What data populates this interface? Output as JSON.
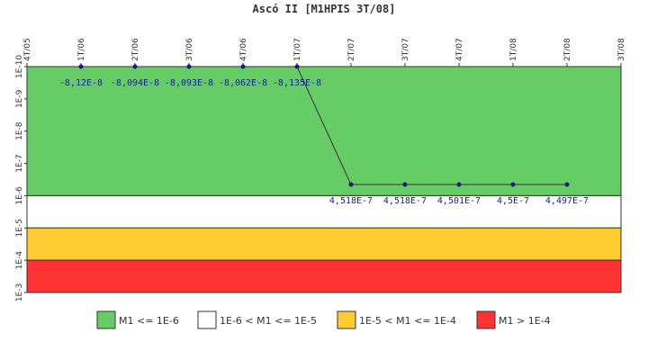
{
  "chart_data": {
    "type": "line",
    "title": "Ascó II [M1HPIS 3T/08]",
    "xlabel": "",
    "ylabel": "",
    "y_scale": "log",
    "y_inverted": true,
    "x_ticks": [
      "4T/05",
      "1T/06",
      "2T/06",
      "3T/06",
      "4T/06",
      "1T/07",
      "2T/07",
      "3T/07",
      "4T/07",
      "1T/08",
      "2T/08",
      "3T/08"
    ],
    "y_ticks": [
      "1E-10",
      "1E-9",
      "1E-8",
      "1E-7",
      "1E-6",
      "1E-5",
      "1E-4",
      "1E-3"
    ],
    "ylim": [
      1e-10,
      0.001
    ],
    "bands": [
      {
        "label": "M1 <= 1E-6",
        "from": 1e-10,
        "to": 1e-06,
        "color": "#66cc66"
      },
      {
        "label": "1E-6 < M1 <= 1E-5",
        "from": 1e-06,
        "to": 1e-05,
        "color": "#ffffff"
      },
      {
        "label": "1E-5 < M1 <= 1E-4",
        "from": 1e-05,
        "to": 0.0001,
        "color": "#ffcc33"
      },
      {
        "label": "M1 > 1E-4",
        "from": 0.0001,
        "to": 0.001,
        "color": "#ff3333"
      }
    ],
    "series": [
      {
        "x": [
          "1T/06",
          "2T/06",
          "3T/06",
          "4T/06",
          "1T/07",
          "2T/07",
          "3T/07",
          "4T/07",
          "1T/08",
          "2T/08"
        ],
        "values": [
          -8.12e-08,
          -8.094e-08,
          -8.093e-08,
          -8.062e-08,
          -8.135e-08,
          4.518e-07,
          4.518e-07,
          4.501e-07,
          4.5e-07,
          4.497e-07
        ],
        "labels": [
          "-8,12E-8",
          "-8,094E-8",
          "-8,093E-8",
          "-8,062E-8",
          "-8,135E-8",
          "4,518E-7",
          "4,518E-7",
          "4,501E-7",
          "4,5E-7",
          "4,497E-7"
        ],
        "color": "#1a1a80"
      }
    ],
    "legend": {
      "position": "bottom",
      "items": [
        "M1 <= 1E-6",
        "1E-6 < M1 <= 1E-5",
        "1E-5 < M1 <= 1E-4",
        "M1 > 1E-4"
      ]
    },
    "grid": false
  }
}
